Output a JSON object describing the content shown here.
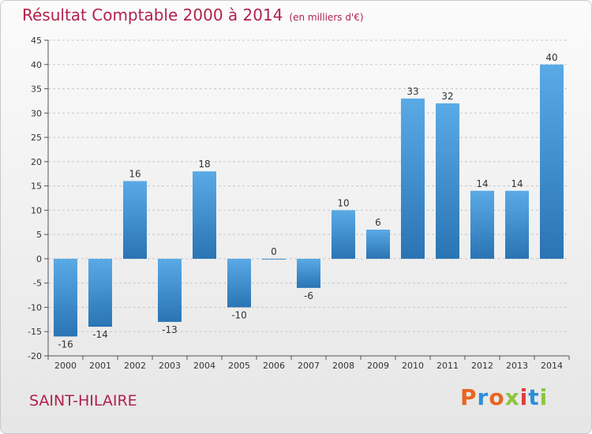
{
  "header": {
    "title": "Résultat Comptable 2000 à 2014",
    "subtitle": "(en milliers d'€)"
  },
  "footer": {
    "commune": "SAINT-HILAIRE",
    "logo_text": "Proxiti",
    "logo_colors": [
      "#e8661f",
      "#2a8fd6",
      "#e8661f",
      "#8cc63f",
      "#e23b3b",
      "#2a8fd6",
      "#8cc63f"
    ]
  },
  "colors": {
    "bar_top": "#5aaae6",
    "bar_bottom": "#2a74b4",
    "grid": "#c8c8c8",
    "axis": "#555555"
  },
  "chart_data": {
    "type": "bar",
    "title": "Résultat Comptable 2000 à 2014",
    "subtitle": "(en milliers d'€)",
    "categories": [
      "2000",
      "2001",
      "2002",
      "2003",
      "2004",
      "2005",
      "2006",
      "2007",
      "2008",
      "2009",
      "2010",
      "2011",
      "2012",
      "2013",
      "2014"
    ],
    "values": [
      -16,
      -14,
      16,
      -13,
      18,
      -10,
      0,
      -6,
      10,
      6,
      33,
      32,
      14,
      14,
      40
    ],
    "ylim": [
      -20,
      45
    ],
    "yticks": [
      -20,
      -15,
      -10,
      -5,
      0,
      5,
      10,
      15,
      20,
      25,
      30,
      35,
      40,
      45
    ],
    "grid": true,
    "legend": "none"
  }
}
